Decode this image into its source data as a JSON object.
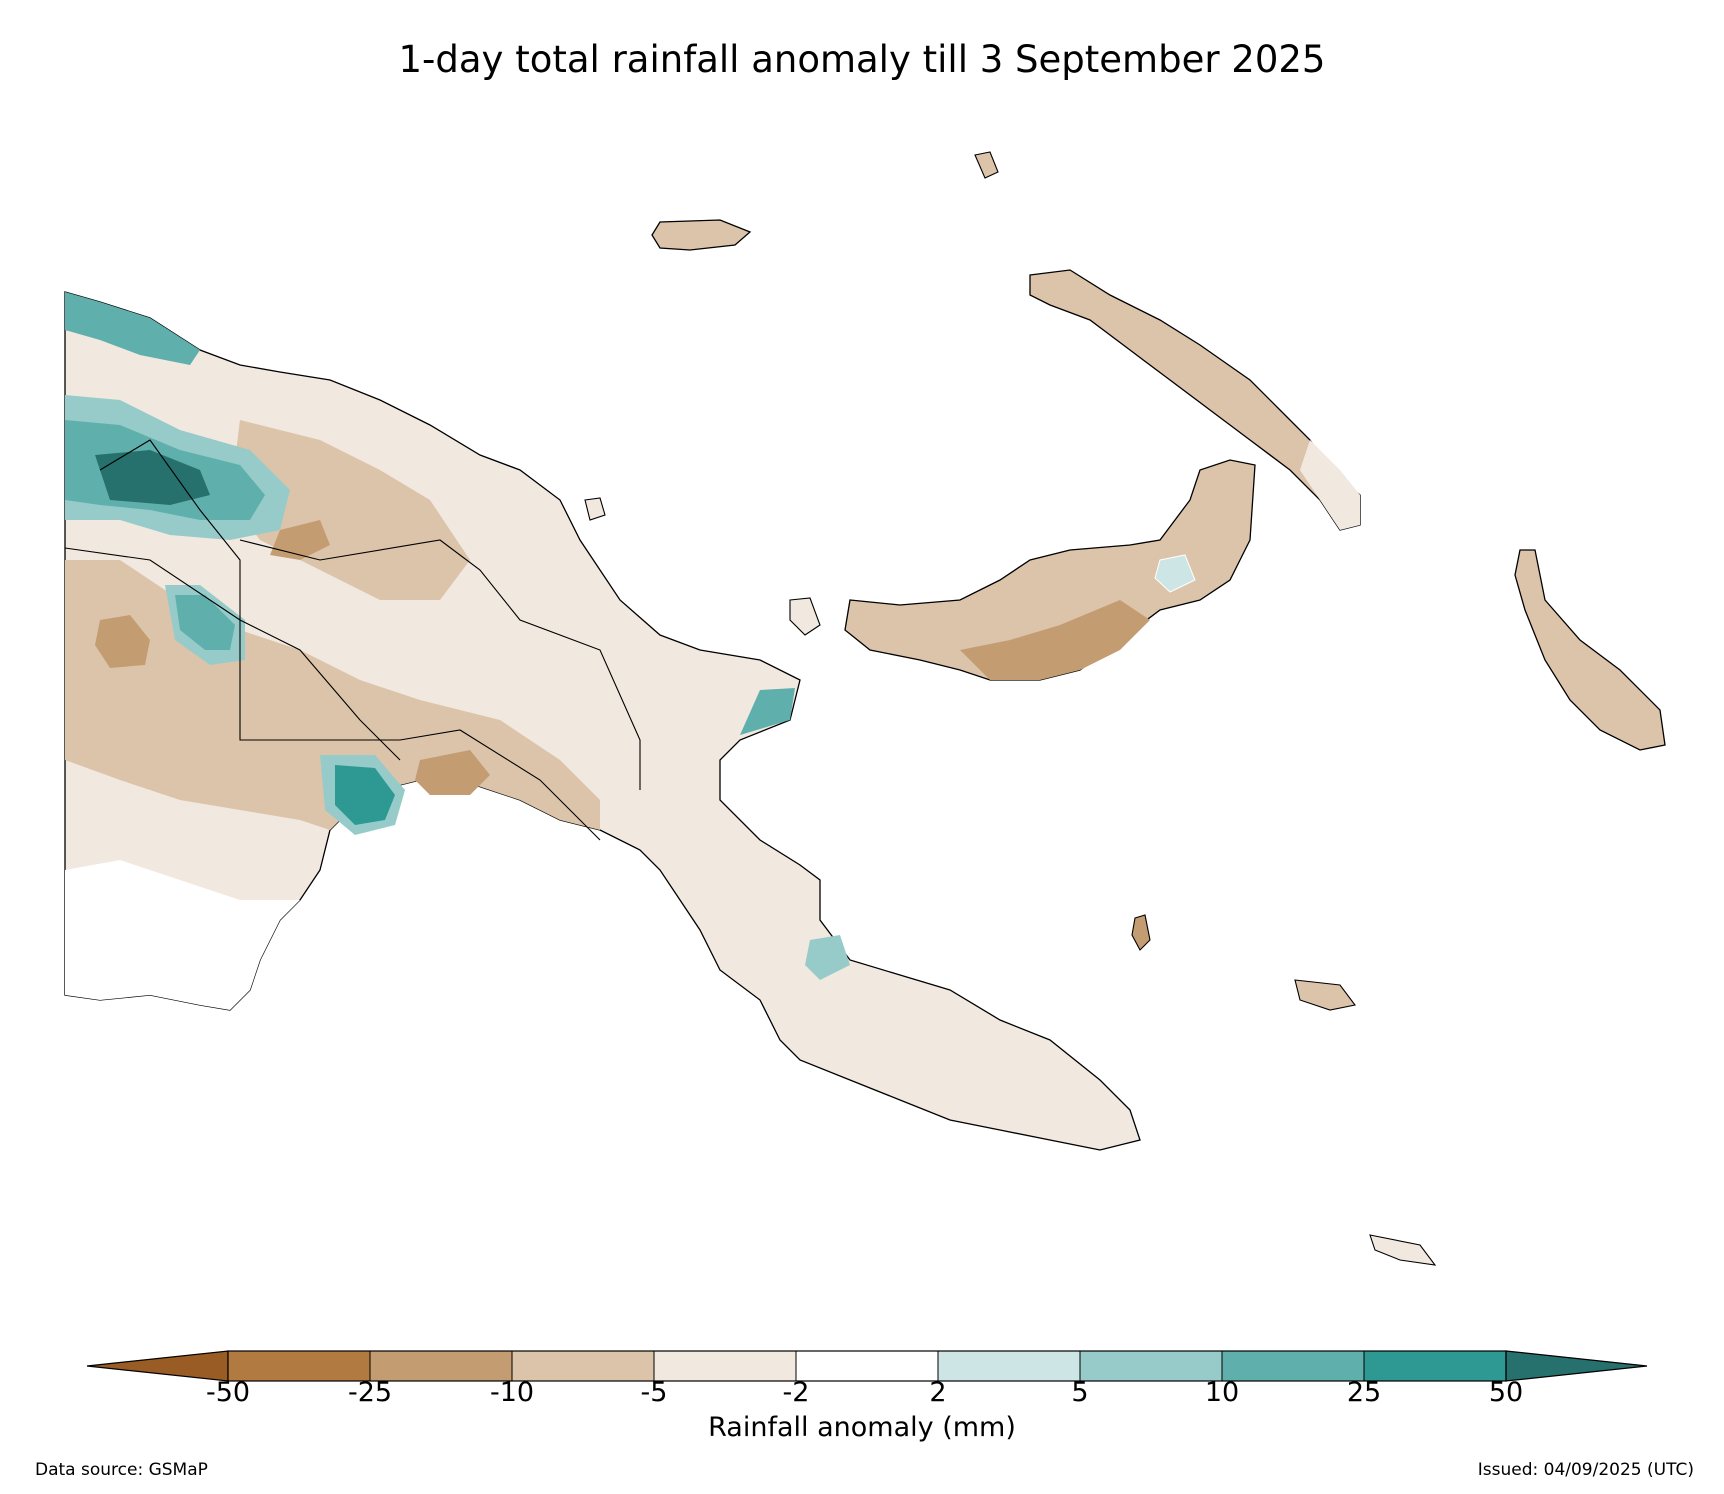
{
  "title": "1-day total rainfall anomaly till 3 September 2025",
  "colorbar": {
    "label": "Rainfall anomaly (mm)",
    "ticks": [
      "-50",
      "-25",
      "-10",
      "-5",
      "-2",
      "2",
      "5",
      "10",
      "25",
      "50"
    ],
    "colors": [
      "#995c24",
      "#b07a40",
      "#c49c72",
      "#dcc4aa",
      "#f1e8e0",
      "#ffffff",
      "#cde6e5",
      "#97cbc9",
      "#5fb0ad",
      "#2e9893",
      "#26716d"
    ]
  },
  "source": "Data source: GSMaP",
  "issued": "Issued: 04/09/2025 (UTC)"
}
